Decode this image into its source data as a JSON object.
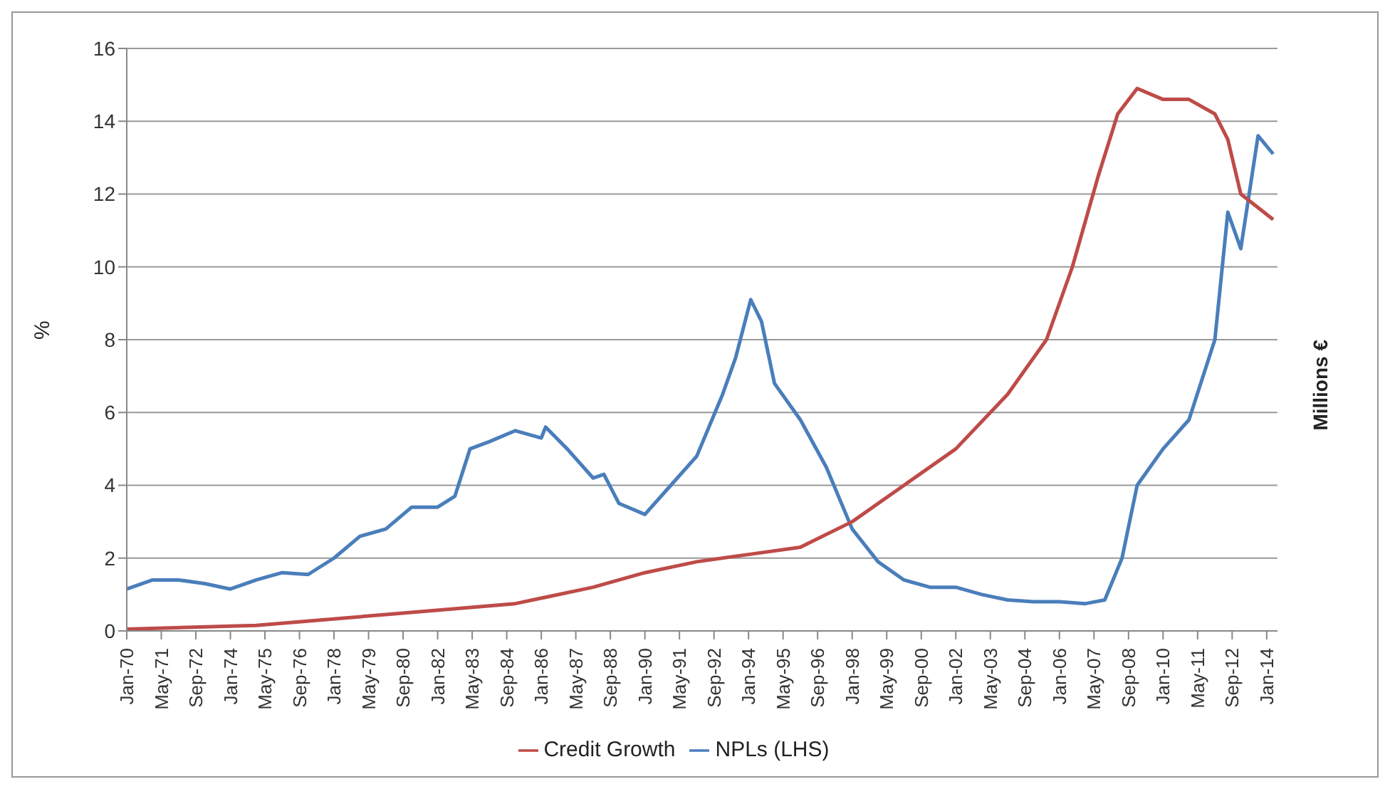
{
  "chart_data": {
    "type": "line",
    "ylabel": "%",
    "y2label": "Millions €",
    "ylim": [
      0,
      16
    ],
    "yticks": [
      0,
      2,
      4,
      6,
      8,
      10,
      12,
      14,
      16
    ],
    "xlim": [
      "1970-01",
      "2014-06"
    ],
    "xticks": [
      {
        "value": "1970-01",
        "label": "Jan-70"
      },
      {
        "value": "1971-05",
        "label": "May-71"
      },
      {
        "value": "1972-09",
        "label": "Sep-72"
      },
      {
        "value": "1974-01",
        "label": "Jan-74"
      },
      {
        "value": "1975-05",
        "label": "May-75"
      },
      {
        "value": "1976-09",
        "label": "Sep-76"
      },
      {
        "value": "1978-01",
        "label": "Jan-78"
      },
      {
        "value": "1979-05",
        "label": "May-79"
      },
      {
        "value": "1980-09",
        "label": "Sep-80"
      },
      {
        "value": "1982-01",
        "label": "Jan-82"
      },
      {
        "value": "1983-05",
        "label": "May-83"
      },
      {
        "value": "1984-09",
        "label": "Sep-84"
      },
      {
        "value": "1986-01",
        "label": "Jan-86"
      },
      {
        "value": "1987-05",
        "label": "May-87"
      },
      {
        "value": "1988-09",
        "label": "Sep-88"
      },
      {
        "value": "1990-01",
        "label": "Jan-90"
      },
      {
        "value": "1991-05",
        "label": "May-91"
      },
      {
        "value": "1992-09",
        "label": "Sep-92"
      },
      {
        "value": "1994-01",
        "label": "Jan-94"
      },
      {
        "value": "1995-05",
        "label": "May-95"
      },
      {
        "value": "1996-09",
        "label": "Sep-96"
      },
      {
        "value": "1998-01",
        "label": "Jan-98"
      },
      {
        "value": "1999-05",
        "label": "May-99"
      },
      {
        "value": "2000-09",
        "label": "Sep-00"
      },
      {
        "value": "2002-01",
        "label": "Jan-02"
      },
      {
        "value": "2003-05",
        "label": "May-03"
      },
      {
        "value": "2004-09",
        "label": "Sep-04"
      },
      {
        "value": "2006-01",
        "label": "Jan-06"
      },
      {
        "value": "2007-05",
        "label": "May-07"
      },
      {
        "value": "2008-09",
        "label": "Sep-08"
      },
      {
        "value": "2010-01",
        "label": "Jan-10"
      },
      {
        "value": "2011-05",
        "label": "May-11"
      },
      {
        "value": "2012-09",
        "label": "Sep-12"
      },
      {
        "value": "2014-01",
        "label": "Jan-14"
      }
    ],
    "grid": "y",
    "legend": "bottom",
    "marker": "none",
    "line_style": "solid",
    "series": [
      {
        "name": "NPLs (LHS)",
        "color": "#4a7ebb",
        "x": [
          "1970-01",
          "1971-01",
          "1972-01",
          "1973-01",
          "1974-01",
          "1975-01",
          "1976-01",
          "1977-01",
          "1978-01",
          "1979-01",
          "1980-01",
          "1981-01",
          "1982-01",
          "1982-09",
          "1983-04",
          "1984-01",
          "1985-01",
          "1986-01",
          "1986-03",
          "1987-01",
          "1988-01",
          "1988-06",
          "1989-01",
          "1990-01",
          "1991-01",
          "1992-01",
          "1993-01",
          "1993-07",
          "1994-02",
          "1994-07",
          "1995-01",
          "1996-01",
          "1997-01",
          "1998-01",
          "1999-01",
          "2000-01",
          "2001-01",
          "2002-01",
          "2003-01",
          "2004-01",
          "2005-01",
          "2006-01",
          "2007-01",
          "2007-10",
          "2008-06",
          "2009-01",
          "2010-01",
          "2011-01",
          "2012-01",
          "2012-07",
          "2013-01",
          "2013-09",
          "2014-04"
        ],
        "values": [
          1.15,
          1.4,
          1.4,
          1.3,
          1.15,
          1.4,
          1.6,
          1.55,
          2.0,
          2.6,
          2.8,
          3.4,
          3.4,
          3.7,
          5.0,
          5.2,
          5.5,
          5.3,
          5.6,
          5.0,
          4.2,
          4.3,
          3.5,
          3.2,
          4.0,
          4.8,
          6.5,
          7.5,
          9.1,
          8.5,
          6.8,
          5.8,
          4.5,
          2.8,
          1.9,
          1.4,
          1.2,
          1.2,
          1.0,
          0.85,
          0.8,
          0.8,
          0.75,
          0.85,
          2.0,
          4.0,
          5.0,
          5.8,
          8.0,
          11.5,
          10.5,
          13.6,
          13.1
        ]
      },
      {
        "name": "Credit Growth",
        "color": "#be4b48",
        "x": [
          "1970-01",
          "1975-01",
          "1980-01",
          "1985-01",
          "1988-01",
          "1990-01",
          "1992-01",
          "1994-01",
          "1996-01",
          "1998-01",
          "2000-01",
          "2002-01",
          "2004-01",
          "2005-07",
          "2006-07",
          "2007-07",
          "2008-04",
          "2009-01",
          "2010-01",
          "2011-01",
          "2012-01",
          "2012-07",
          "2013-01",
          "2014-04"
        ],
        "values": [
          0.05,
          0.15,
          0.45,
          0.75,
          1.2,
          1.6,
          1.9,
          2.1,
          2.3,
          3.0,
          4.0,
          5.0,
          6.5,
          8.0,
          10.0,
          12.5,
          14.2,
          14.9,
          14.6,
          14.6,
          14.2,
          13.5,
          12.0,
          11.3
        ]
      }
    ]
  }
}
